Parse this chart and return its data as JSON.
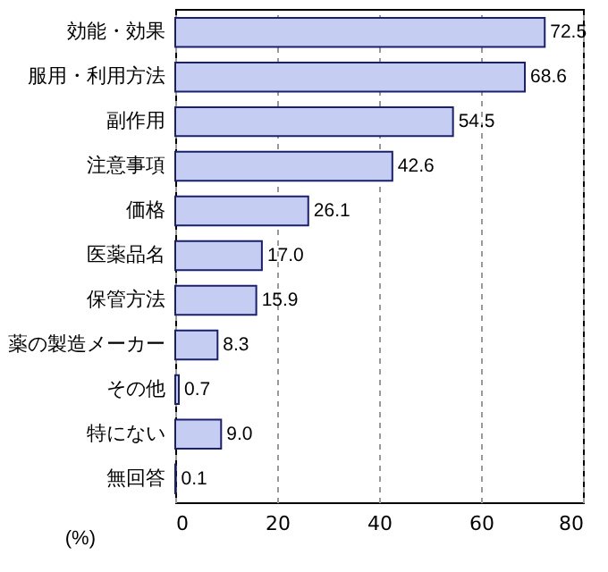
{
  "chart_data": {
    "type": "bar",
    "orientation": "horizontal",
    "xlabel": "(%)",
    "categories": [
      "効能・効果",
      "服用・利用方法",
      "副作用",
      "注意事項",
      "価格",
      "医薬品名",
      "保管方法",
      "薬の製造メーカー",
      "その他",
      "特にない",
      "無回答"
    ],
    "values": [
      72.5,
      68.6,
      54.5,
      42.6,
      26.1,
      17.0,
      15.9,
      8.3,
      0.7,
      9.0,
      0.1
    ],
    "value_labels": [
      "72.5",
      "68.6",
      "54.5",
      "42.6",
      "26.1",
      "17.0",
      "15.9",
      "8.3",
      "0.7",
      "9.0",
      "0.1"
    ],
    "color": "#c5cdf2",
    "xlim": [
      0,
      80
    ],
    "xticks": [
      0,
      20,
      40,
      60,
      80
    ],
    "grid": "x"
  }
}
